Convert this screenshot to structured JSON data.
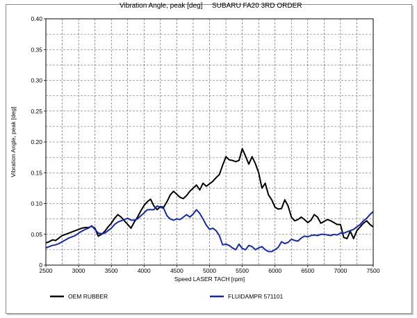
{
  "chart_data": {
    "type": "line",
    "title_left": "Vibration Angle, peak [deg]",
    "title_right": "SUBARU FA20 3RD ORDER",
    "xlabel": "Speed LASER TACH [rpm]",
    "ylabel": "Vibration Angle, peak [deg]",
    "xlim": [
      2500,
      7500
    ],
    "ylim": [
      0,
      0.4
    ],
    "xticks": [
      "2500",
      "3000",
      "3500",
      "4000",
      "4500",
      "5000",
      "5500",
      "6000",
      "6500",
      "7000",
      "7500"
    ],
    "yticks": [
      "0",
      "0.05",
      "0.10",
      "0.15",
      "0.20",
      "0.25",
      "0.30",
      "0.35",
      "0.40"
    ],
    "grid": true,
    "legend_position": "bottom",
    "series": [
      {
        "name": "OEM RUBBER",
        "color": "#000000",
        "points": [
          [
            2500,
            0.036
          ],
          [
            2550,
            0.038
          ],
          [
            2600,
            0.041
          ],
          [
            2650,
            0.04
          ],
          [
            2700,
            0.044
          ],
          [
            2750,
            0.048
          ],
          [
            2800,
            0.05
          ],
          [
            2850,
            0.052
          ],
          [
            2900,
            0.054
          ],
          [
            2950,
            0.056
          ],
          [
            3000,
            0.058
          ],
          [
            3050,
            0.06
          ],
          [
            3100,
            0.061
          ],
          [
            3150,
            0.061
          ],
          [
            3200,
            0.063
          ],
          [
            3250,
            0.06
          ],
          [
            3300,
            0.047
          ],
          [
            3350,
            0.05
          ],
          [
            3400,
            0.055
          ],
          [
            3450,
            0.062
          ],
          [
            3500,
            0.068
          ],
          [
            3550,
            0.076
          ],
          [
            3600,
            0.082
          ],
          [
            3650,
            0.078
          ],
          [
            3700,
            0.072
          ],
          [
            3750,
            0.066
          ],
          [
            3800,
            0.06
          ],
          [
            3850,
            0.07
          ],
          [
            3900,
            0.078
          ],
          [
            3950,
            0.088
          ],
          [
            4000,
            0.097
          ],
          [
            4050,
            0.103
          ],
          [
            4100,
            0.107
          ],
          [
            4150,
            0.096
          ],
          [
            4200,
            0.09
          ],
          [
            4250,
            0.095
          ],
          [
            4300,
            0.094
          ],
          [
            4350,
            0.103
          ],
          [
            4400,
            0.114
          ],
          [
            4450,
            0.12
          ],
          [
            4500,
            0.115
          ],
          [
            4550,
            0.11
          ],
          [
            4600,
            0.108
          ],
          [
            4650,
            0.113
          ],
          [
            4700,
            0.12
          ],
          [
            4750,
            0.125
          ],
          [
            4800,
            0.13
          ],
          [
            4850,
            0.122
          ],
          [
            4900,
            0.133
          ],
          [
            4950,
            0.128
          ],
          [
            5000,
            0.132
          ],
          [
            5050,
            0.136
          ],
          [
            5100,
            0.142
          ],
          [
            5150,
            0.147
          ],
          [
            5200,
            0.162
          ],
          [
            5250,
            0.176
          ],
          [
            5300,
            0.171
          ],
          [
            5350,
            0.17
          ],
          [
            5400,
            0.168
          ],
          [
            5450,
            0.17
          ],
          [
            5500,
            0.189
          ],
          [
            5550,
            0.177
          ],
          [
            5600,
            0.164
          ],
          [
            5650,
            0.176
          ],
          [
            5700,
            0.165
          ],
          [
            5750,
            0.15
          ],
          [
            5800,
            0.125
          ],
          [
            5850,
            0.133
          ],
          [
            5900,
            0.114
          ],
          [
            5950,
            0.106
          ],
          [
            6000,
            0.094
          ],
          [
            6050,
            0.091
          ],
          [
            6100,
            0.092
          ],
          [
            6150,
            0.106
          ],
          [
            6200,
            0.096
          ],
          [
            6250,
            0.078
          ],
          [
            6300,
            0.072
          ],
          [
            6350,
            0.074
          ],
          [
            6400,
            0.078
          ],
          [
            6450,
            0.074
          ],
          [
            6500,
            0.069
          ],
          [
            6550,
            0.073
          ],
          [
            6600,
            0.082
          ],
          [
            6650,
            0.078
          ],
          [
            6700,
            0.068
          ],
          [
            6750,
            0.071
          ],
          [
            6800,
            0.074
          ],
          [
            6850,
            0.072
          ],
          [
            6900,
            0.069
          ],
          [
            6950,
            0.066
          ],
          [
            7000,
            0.066
          ],
          [
            7050,
            0.045
          ],
          [
            7100,
            0.043
          ],
          [
            7150,
            0.055
          ],
          [
            7200,
            0.043
          ],
          [
            7250,
            0.056
          ],
          [
            7300,
            0.062
          ],
          [
            7350,
            0.068
          ],
          [
            7400,
            0.072
          ],
          [
            7450,
            0.066
          ],
          [
            7500,
            0.062
          ]
        ]
      },
      {
        "name": "FLUIDAMPR 571101",
        "color": "#1428b4",
        "points": [
          [
            2500,
            0.028
          ],
          [
            2550,
            0.03
          ],
          [
            2600,
            0.032
          ],
          [
            2650,
            0.033
          ],
          [
            2700,
            0.035
          ],
          [
            2750,
            0.038
          ],
          [
            2800,
            0.041
          ],
          [
            2850,
            0.044
          ],
          [
            2900,
            0.046
          ],
          [
            2950,
            0.048
          ],
          [
            3000,
            0.052
          ],
          [
            3050,
            0.055
          ],
          [
            3100,
            0.058
          ],
          [
            3150,
            0.06
          ],
          [
            3200,
            0.064
          ],
          [
            3250,
            0.058
          ],
          [
            3300,
            0.052
          ],
          [
            3350,
            0.051
          ],
          [
            3400,
            0.052
          ],
          [
            3450,
            0.056
          ],
          [
            3500,
            0.06
          ],
          [
            3550,
            0.066
          ],
          [
            3600,
            0.07
          ],
          [
            3650,
            0.072
          ],
          [
            3700,
            0.074
          ],
          [
            3750,
            0.076
          ],
          [
            3800,
            0.073
          ],
          [
            3850,
            0.073
          ],
          [
            3900,
            0.075
          ],
          [
            3950,
            0.08
          ],
          [
            4000,
            0.085
          ],
          [
            4050,
            0.09
          ],
          [
            4100,
            0.09
          ],
          [
            4150,
            0.09
          ],
          [
            4200,
            0.096
          ],
          [
            4250,
            0.094
          ],
          [
            4300,
            0.092
          ],
          [
            4350,
            0.08
          ],
          [
            4400,
            0.075
          ],
          [
            4450,
            0.073
          ],
          [
            4500,
            0.075
          ],
          [
            4550,
            0.074
          ],
          [
            4600,
            0.078
          ],
          [
            4650,
            0.082
          ],
          [
            4700,
            0.078
          ],
          [
            4750,
            0.083
          ],
          [
            4800,
            0.09
          ],
          [
            4850,
            0.084
          ],
          [
            4900,
            0.075
          ],
          [
            4950,
            0.065
          ],
          [
            5000,
            0.058
          ],
          [
            5050,
            0.06
          ],
          [
            5100,
            0.056
          ],
          [
            5150,
            0.048
          ],
          [
            5200,
            0.033
          ],
          [
            5250,
            0.034
          ],
          [
            5300,
            0.032
          ],
          [
            5350,
            0.028
          ],
          [
            5400,
            0.025
          ],
          [
            5450,
            0.034
          ],
          [
            5500,
            0.027
          ],
          [
            5550,
            0.025
          ],
          [
            5600,
            0.032
          ],
          [
            5650,
            0.03
          ],
          [
            5700,
            0.025
          ],
          [
            5750,
            0.028
          ],
          [
            5800,
            0.03
          ],
          [
            5850,
            0.025
          ],
          [
            5900,
            0.022
          ],
          [
            5950,
            0.022
          ],
          [
            6000,
            0.025
          ],
          [
            6050,
            0.029
          ],
          [
            6100,
            0.038
          ],
          [
            6150,
            0.035
          ],
          [
            6200,
            0.037
          ],
          [
            6250,
            0.042
          ],
          [
            6300,
            0.04
          ],
          [
            6350,
            0.039
          ],
          [
            6400,
            0.044
          ],
          [
            6450,
            0.047
          ],
          [
            6500,
            0.046
          ],
          [
            6550,
            0.048
          ],
          [
            6600,
            0.049
          ],
          [
            6650,
            0.048
          ],
          [
            6700,
            0.05
          ],
          [
            6750,
            0.05
          ],
          [
            6800,
            0.049
          ],
          [
            6850,
            0.048
          ],
          [
            6900,
            0.05
          ],
          [
            6950,
            0.049
          ],
          [
            7000,
            0.052
          ],
          [
            7050,
            0.052
          ],
          [
            7100,
            0.054
          ],
          [
            7150,
            0.056
          ],
          [
            7200,
            0.058
          ],
          [
            7250,
            0.062
          ],
          [
            7300,
            0.066
          ],
          [
            7350,
            0.072
          ],
          [
            7400,
            0.076
          ],
          [
            7450,
            0.082
          ],
          [
            7500,
            0.087
          ]
        ]
      }
    ]
  }
}
